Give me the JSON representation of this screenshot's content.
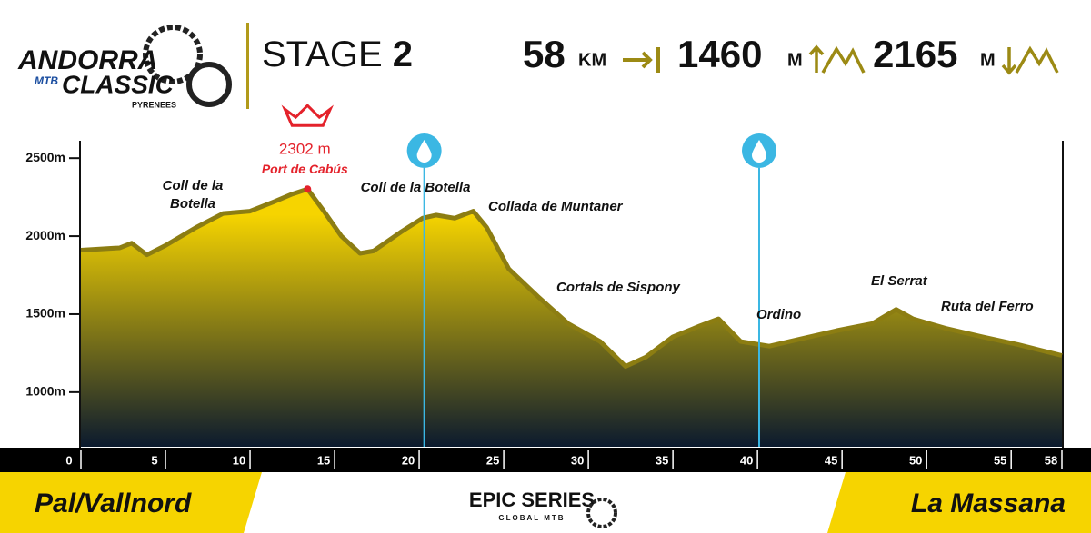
{
  "header": {
    "logo": [
      "ANDORRA",
      "MTB",
      "CLASSIC",
      "PYRENEES"
    ],
    "stage": "STAGE",
    "stage_number": "2",
    "distance": "58",
    "distance_unit": "KM",
    "climb": "1460",
    "climb_unit": "M",
    "descent": "2165",
    "descent_unit": "M"
  },
  "footer": {
    "start": "Pal/Vallnord",
    "finish": "La Massana",
    "brand": "EPIC SERIES",
    "brand_sub": "GLOBAL MTB"
  },
  "chart_data": {
    "type": "area",
    "x": [
      0,
      2.3,
      3,
      3.9,
      5,
      6.8,
      8.4,
      10,
      11.4,
      12.5,
      13.4,
      14.3,
      15.4,
      16.5,
      17.3,
      18.9,
      20.2,
      21,
      22.1,
      23.2,
      24,
      25.3,
      27,
      28.8,
      30.7,
      32.2,
      33.4,
      35,
      36.6,
      37.7,
      39,
      40.7,
      42.5,
      44.7,
      46.8,
      48.2,
      49.2,
      51.1,
      53.3,
      55.4,
      58
    ],
    "values": [
      1910,
      1925,
      1955,
      1880,
      1940,
      2055,
      2145,
      2160,
      2220,
      2270,
      2302,
      2170,
      2000,
      1890,
      1905,
      2025,
      2115,
      2135,
      2115,
      2160,
      2055,
      1790,
      1615,
      1440,
      1325,
      1165,
      1225,
      1355,
      1425,
      1470,
      1325,
      1295,
      1340,
      1395,
      1440,
      1530,
      1470,
      1410,
      1355,
      1305,
      1235
    ],
    "xlim": [
      0,
      58
    ],
    "ylim": [
      650,
      2600
    ],
    "xticks": [
      0,
      5,
      10,
      15,
      20,
      25,
      30,
      35,
      40,
      45,
      50,
      55,
      58
    ],
    "yticks": [
      {
        "value": 1000,
        "label": "1000m"
      },
      {
        "value": 1500,
        "label": "1500m"
      },
      {
        "value": 2000,
        "label": "2000m"
      },
      {
        "value": 2500,
        "label": "2500m"
      }
    ],
    "peak_label": "2302 m",
    "peak_name": "Port de Cabús",
    "water_points": [
      20.3,
      40.1
    ],
    "annotations": [
      "Coll de la\nBotella",
      "Coll de la Botella",
      "Collada de Muntaner",
      "Cortals de Sispony",
      "Ordino",
      "El Serrat",
      "Ruta del Ferro"
    ],
    "colors": {
      "top": "#f6d400",
      "bottom": "#0b1a2e",
      "line": "#8c7d12",
      "peak": "#e4222b",
      "water": "#3bb7e3"
    }
  }
}
